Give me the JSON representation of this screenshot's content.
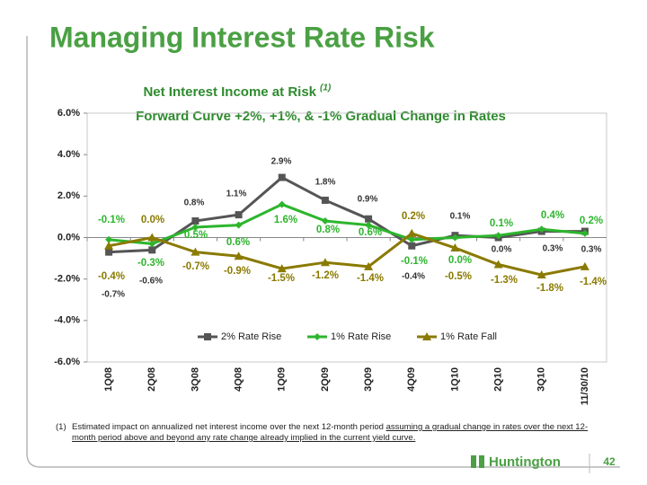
{
  "header": {
    "title": "Managing Interest Rate Risk",
    "page_number": "42",
    "logo": "Huntington"
  },
  "chart_data": {
    "type": "line",
    "title": "Net Interest Income at Risk",
    "title_note": "(1)",
    "subtitle": "Forward Curve +2%, +1%, & -1% Gradual Change in Rates",
    "categories": [
      "1Q08",
      "2Q08",
      "3Q08",
      "4Q08",
      "1Q09",
      "2Q09",
      "3Q09",
      "4Q09",
      "1Q10",
      "2Q10",
      "3Q10",
      "11/30/10"
    ],
    "series": [
      {
        "name": "2% Rate Rise",
        "color": "#555555",
        "marker": "square",
        "values": [
          -0.7,
          -0.6,
          0.8,
          1.1,
          2.9,
          1.8,
          0.9,
          -0.4,
          0.1,
          0.0,
          0.3,
          0.3
        ],
        "value_labels": [
          "-0.7%",
          "-0.6%",
          "0.8%",
          "1.1%",
          "2.9%",
          "1.8%",
          "0.9%",
          "-0.4%",
          "0.1%",
          "0.0%",
          "0.3%",
          "0.3%"
        ]
      },
      {
        "name": "1% Rate Rise",
        "color": "#2db52d",
        "marker": "diamond",
        "values": [
          -0.1,
          -0.3,
          0.5,
          0.6,
          1.6,
          0.8,
          0.6,
          -0.1,
          0.0,
          0.1,
          0.4,
          0.2
        ],
        "value_labels": [
          "-0.1%",
          "-0.3%",
          "0.5%",
          "0.6%",
          "1.6%",
          "0.8%",
          "0.6%",
          "-0.1%",
          "0.0%",
          "0.1%",
          "0.4%",
          "0.2%"
        ]
      },
      {
        "name": "1% Rate Fall",
        "color": "#8a7a00",
        "marker": "triangle",
        "values": [
          -0.4,
          0.0,
          -0.7,
          -0.9,
          -1.5,
          -1.2,
          -1.4,
          0.2,
          -0.5,
          -1.3,
          -1.8,
          -1.4
        ],
        "value_labels": [
          "-0.4%",
          "0.0%",
          "-0.7%",
          "-0.9%",
          "-1.5%",
          "-1.2%",
          "-1.4%",
          "0.2%",
          "-0.5%",
          "-1.3%",
          "-1.8%",
          "-1.4%"
        ]
      }
    ],
    "ylim": [
      -6,
      6
    ],
    "yticks": [
      {
        "value": -6,
        "label": "-6.0%"
      },
      {
        "value": -4,
        "label": "-4.0%"
      },
      {
        "value": -2,
        "label": "-2.0%"
      },
      {
        "value": 0,
        "label": "0.0%"
      },
      {
        "value": 2,
        "label": "2.0%"
      },
      {
        "value": 4,
        "label": "4.0%"
      },
      {
        "value": 6,
        "label": "6.0%"
      }
    ],
    "grid": false,
    "legend": "bottom"
  },
  "footnote": {
    "marker": "(1)",
    "text": "Estimated impact on annualized net interest income over the next 12-month period ",
    "underlined": "assuming a gradual change in rates over the next 12-month period above and beyond any rate change already implied in the current yield curve."
  }
}
